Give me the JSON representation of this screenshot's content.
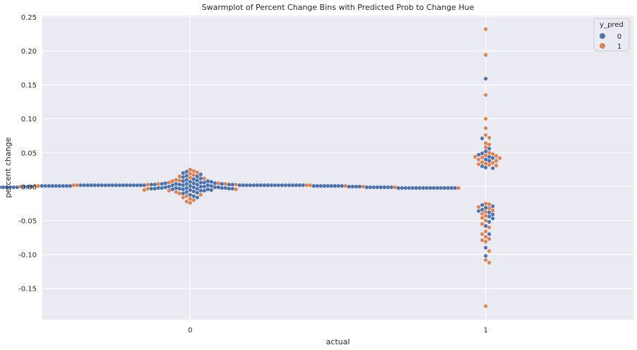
{
  "chart_data": {
    "type": "scatter",
    "subtype": "swarmplot",
    "title": "Swarmplot of Percent Change Bins with Predicted Prob to Change Hue",
    "xlabel": "actual",
    "ylabel": "percent change",
    "categories": [
      "0",
      "1"
    ],
    "ylim": [
      -0.196,
      0.252
    ],
    "yticks": [
      "-0.15",
      "-0.10",
      "-0.05",
      "0.00",
      "0.05",
      "0.10",
      "0.15",
      "0.20",
      "0.25"
    ],
    "grid": true,
    "legend": {
      "title": "y_pred",
      "position": "top-right",
      "entries": [
        {
          "label": "0",
          "color": "#4c72b0"
        },
        {
          "label": "1",
          "color": "#dd8452"
        }
      ]
    },
    "series": [
      {
        "name": "0",
        "color": "#4c72b0",
        "points": [
          {
            "category": "0",
            "values": [
              0.022,
              0.02,
              0.018,
              0.016,
              0.015,
              0.014,
              0.012,
              0.011,
              0.01,
              0.009,
              0.008,
              0.008,
              0.007,
              0.007,
              0.006,
              0.006,
              0.005,
              0.005,
              0.005,
              0.004,
              0.004,
              0.004,
              0.004,
              0.003,
              0.003,
              0.003,
              0.003,
              0.003,
              0.003,
              0.002,
              0.002,
              0.002,
              0.002,
              0.002,
              0.002,
              0.002,
              0.002,
              0.002,
              0.002,
              0.002,
              0.002,
              0.002,
              0.002,
              0.002,
              0.002,
              0.002,
              0.002,
              0.002,
              0.002,
              0.002,
              0.002,
              0.002,
              0.002,
              0.002,
              0.002,
              0.002,
              0.002,
              0.002,
              0.002,
              0.002,
              0.002,
              0.002,
              0.002,
              0.002,
              0.002,
              0.002,
              0.002,
              0.002,
              0.002,
              0.002,
              0.001,
              0.001,
              0.001,
              0.001,
              0.001,
              0.001,
              0.001,
              0.001,
              0.001,
              0.001,
              0.001,
              0.001,
              0.001,
              0.001,
              0.001,
              0.001,
              0.001,
              0.001,
              0.001,
              0.001,
              0.0,
              0.0,
              0.0,
              0.0,
              0.0,
              0.0,
              0.0,
              0.0,
              0.0,
              0.0,
              -0.001,
              -0.001,
              -0.001,
              -0.001,
              -0.001,
              -0.001,
              -0.001,
              -0.001,
              -0.001,
              -0.001,
              -0.001,
              -0.001,
              -0.001,
              -0.001,
              -0.001,
              -0.001,
              -0.001,
              -0.001,
              -0.001,
              -0.001,
              -0.002,
              -0.002,
              -0.002,
              -0.002,
              -0.002,
              -0.002,
              -0.002,
              -0.002,
              -0.002,
              -0.002,
              -0.002,
              -0.002,
              -0.002,
              -0.002,
              -0.002,
              -0.002,
              -0.002,
              -0.002,
              -0.002,
              -0.002,
              -0.002,
              -0.002,
              -0.002,
              -0.002,
              -0.002,
              -0.002,
              -0.002,
              -0.002,
              -0.002,
              -0.002,
              -0.002,
              -0.002,
              -0.002,
              -0.002,
              -0.002,
              -0.002,
              -0.002,
              -0.002,
              -0.002,
              -0.002,
              -0.003,
              -0.003,
              -0.003,
              -0.003,
              -0.003,
              -0.003,
              -0.004,
              -0.004,
              -0.004,
              -0.005,
              -0.005,
              -0.006,
              -0.006,
              -0.007,
              -0.008,
              -0.009,
              -0.01,
              -0.012,
              -0.014,
              -0.016
            ]
          },
          {
            "category": "1",
            "values": [
              0.159,
              0.071,
              0.056,
              0.052,
              0.049,
              0.047,
              0.044,
              0.042,
              0.04,
              0.038,
              0.03,
              0.028,
              0.027,
              -0.027,
              -0.029,
              -0.031,
              -0.034,
              -0.036,
              -0.038,
              -0.041,
              -0.044,
              -0.047,
              -0.052,
              -0.058,
              -0.07,
              -0.09,
              -0.102
            ]
          }
        ]
      },
      {
        "name": "1",
        "color": "#dd8452",
        "points": [
          {
            "category": "0",
            "values": [
              0.025,
              0.023,
              0.021,
              0.019,
              0.017,
              0.015,
              0.013,
              0.012,
              0.01,
              0.009,
              0.008,
              0.006,
              0.005,
              0.004,
              0.004,
              0.003,
              0.003,
              0.002,
              0.002,
              0.002,
              0.002,
              0.001,
              0.001,
              0.001,
              0.0,
              0.0,
              -0.001,
              -0.001,
              -0.002,
              -0.002,
              -0.003,
              -0.004,
              -0.005,
              -0.006,
              -0.008,
              -0.01,
              -0.012,
              -0.014,
              -0.016,
              -0.018,
              -0.02,
              -0.022,
              -0.024
            ]
          },
          {
            "category": "1",
            "values": [
              0.232,
              0.194,
              0.135,
              0.1,
              0.086,
              0.076,
              0.072,
              0.064,
              0.062,
              0.058,
              0.05,
              0.048,
              0.046,
              0.045,
              0.044,
              0.043,
              0.042,
              0.04,
              0.038,
              0.036,
              0.035,
              0.034,
              0.033,
              0.032,
              0.031,
              -0.025,
              -0.026,
              -0.03,
              -0.032,
              -0.035,
              -0.037,
              -0.04,
              -0.043,
              -0.046,
              -0.05,
              -0.055,
              -0.06,
              -0.066,
              -0.07,
              -0.074,
              -0.077,
              -0.079,
              -0.081,
              -0.095,
              -0.108,
              -0.112,
              -0.176
            ]
          }
        ]
      }
    ]
  }
}
